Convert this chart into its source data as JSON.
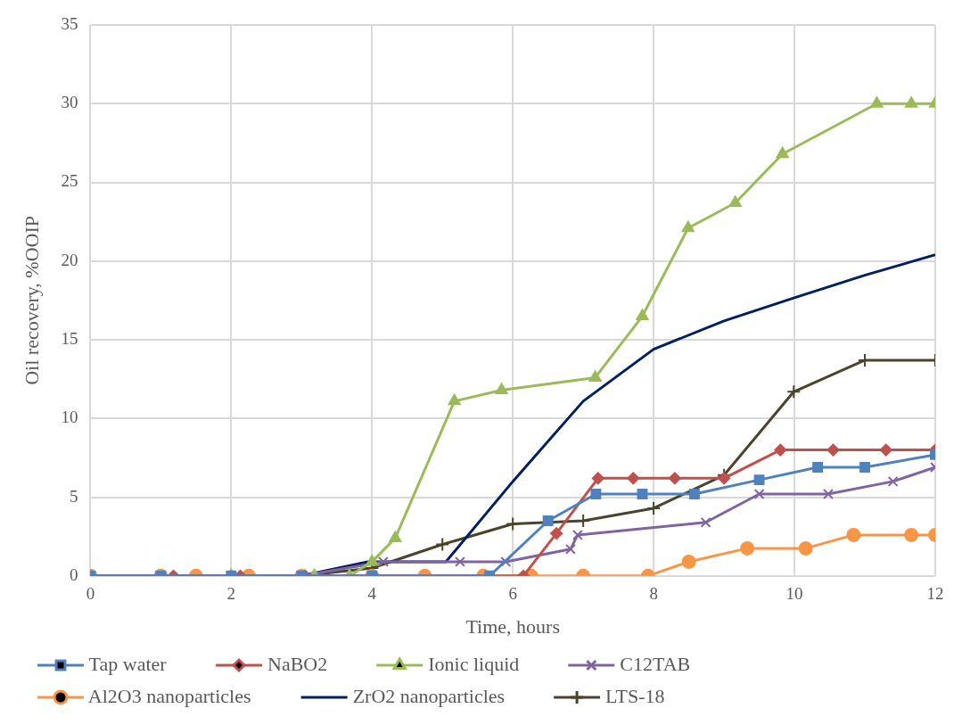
{
  "chart_data": {
    "type": "line",
    "xlabel": "Time, hours",
    "ylabel": "Oil recovery, %OOIP",
    "xlim": [
      0,
      12
    ],
    "xticks": [
      0,
      2,
      4,
      6,
      8,
      10,
      12
    ],
    "ylim": [
      0,
      35
    ],
    "yticks": [
      0,
      5,
      10,
      15,
      20,
      25,
      30,
      35
    ],
    "grid": true,
    "legend": "bottom",
    "line_style": "solid",
    "series": [
      {
        "name": "Tap water",
        "color": "#4f81bd",
        "marker": "square",
        "x": [
          0,
          1,
          2,
          3,
          4,
          5.67,
          6.5,
          7.18,
          7.84,
          8.58,
          9.5,
          10.33,
          11,
          12
        ],
        "values": [
          0,
          0,
          0,
          0,
          0,
          0,
          3.5,
          5.2,
          5.2,
          5.2,
          6.1,
          6.9,
          6.9,
          7.7
        ]
      },
      {
        "name": "NaBO2",
        "color": "#c0504d",
        "marker": "diamond",
        "x": [
          1.18,
          2.13,
          3.05,
          6.15,
          6.62,
          7.21,
          7.71,
          8.3,
          9,
          9.8,
          10.55,
          11.3,
          12
        ],
        "values": [
          0,
          0,
          0,
          0,
          2.7,
          6.2,
          6.2,
          6.2,
          6.2,
          8,
          8,
          8,
          8
        ]
      },
      {
        "name": "Ionic liquid",
        "color": "#9bbb59",
        "marker": "triangle",
        "x": [
          2,
          3.18,
          3.68,
          4,
          4.33,
          5.17,
          5.84,
          7.17,
          7.84,
          8.49,
          9.16,
          9.83,
          11.17,
          11.66,
          12
        ],
        "values": [
          0,
          0,
          0,
          0.9,
          2.4,
          11.1,
          11.8,
          12.6,
          16.5,
          22.1,
          23.7,
          26.8,
          30,
          30,
          30
        ]
      },
      {
        "name": "C12TAB",
        "color": "#8064a2",
        "marker": "cross",
        "x": [
          0,
          1,
          2,
          3,
          4.16,
          5.25,
          5.9,
          6.82,
          6.92,
          8.74,
          9.5,
          10.48,
          11.4,
          12
        ],
        "values": [
          0,
          0,
          0,
          0,
          0.9,
          0.9,
          0.9,
          1.7,
          2.6,
          3.4,
          5.2,
          5.2,
          6,
          6.9
        ]
      },
      {
        "name": "Al2O3 nanoparticles",
        "color": "#f79646",
        "marker": "circle",
        "x": [
          0,
          1,
          1.5,
          2.25,
          3,
          4,
          4.75,
          5.58,
          6.26,
          7,
          7.92,
          8.5,
          9.33,
          10.16,
          10.84,
          11.66,
          12
        ],
        "values": [
          0,
          0,
          0,
          0,
          0,
          0,
          0,
          0,
          0,
          0,
          0,
          0.9,
          1.75,
          1.75,
          2.6,
          2.6,
          2.6
        ]
      },
      {
        "name": "ZrO2 nanoparticles",
        "color": "#002060",
        "marker": "none",
        "x": [
          0,
          1,
          2,
          3,
          3.94,
          5.05,
          6,
          7,
          8,
          9,
          10.02,
          11,
          12
        ],
        "values": [
          0,
          0,
          0,
          0,
          0.9,
          0.9,
          6,
          11.1,
          14.4,
          16.2,
          17.7,
          19.1,
          20.4
        ]
      },
      {
        "name": "LTS-18",
        "color": "#4a452a",
        "marker": "plus",
        "x": [
          0,
          1,
          2,
          3,
          4,
          5,
          6,
          7,
          8,
          9,
          9.99,
          11,
          12
        ],
        "values": [
          0,
          0,
          0,
          0,
          0.5,
          2,
          3.3,
          3.5,
          4.3,
          6.4,
          11.7,
          13.7,
          13.7
        ]
      }
    ]
  }
}
